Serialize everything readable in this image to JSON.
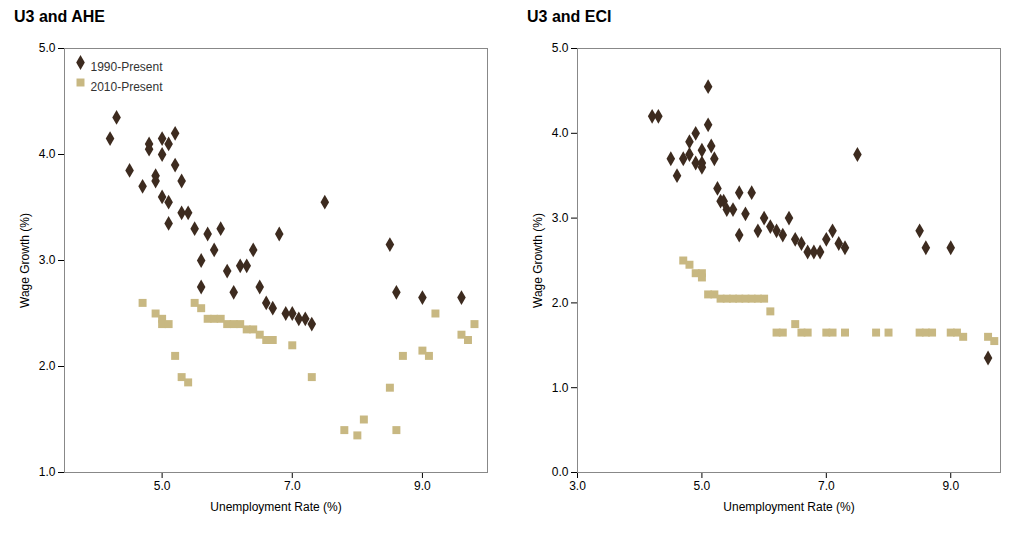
{
  "chart_data": [
    {
      "type": "scatter",
      "title": "U3 and AHE",
      "xlabel": "Unemployment Rate (%)",
      "ylabel": "Wage Growth (%)",
      "xlim": [
        3.5,
        10.0
      ],
      "ylim": [
        1.0,
        5.0
      ],
      "xticks": [
        5,
        7,
        9
      ],
      "yticks": [
        1,
        2,
        3,
        4,
        5
      ],
      "grid": false,
      "legend": "upper left",
      "series": [
        {
          "name": "1990-Present",
          "color": "#3d2b1f",
          "marker": "diamond",
          "x": [
            4.2,
            4.3,
            4.5,
            4.7,
            4.8,
            4.8,
            4.9,
            4.9,
            5.0,
            5.0,
            5.0,
            5.1,
            5.1,
            5.1,
            5.2,
            5.2,
            5.3,
            5.3,
            5.4,
            5.5,
            5.6,
            5.6,
            5.7,
            5.8,
            5.9,
            6.0,
            6.1,
            6.2,
            6.3,
            6.4,
            6.5,
            6.6,
            6.7,
            6.8,
            6.9,
            7.0,
            7.1,
            7.2,
            7.3,
            7.5,
            8.5,
            8.6,
            9.0,
            9.6
          ],
          "values": [
            4.15,
            4.35,
            3.85,
            3.7,
            4.1,
            4.05,
            3.8,
            3.75,
            4.15,
            4.0,
            3.6,
            4.1,
            3.55,
            3.35,
            4.2,
            3.9,
            3.75,
            3.45,
            3.45,
            3.3,
            3.0,
            2.75,
            3.25,
            3.1,
            3.3,
            2.9,
            2.7,
            2.95,
            2.95,
            3.1,
            2.75,
            2.6,
            2.55,
            3.25,
            2.5,
            2.5,
            2.45,
            2.45,
            2.4,
            3.55,
            3.15,
            2.7,
            2.65,
            2.65
          ]
        },
        {
          "name": "2010-Present",
          "color": "#c8b882",
          "marker": "square",
          "x": [
            4.7,
            4.9,
            5.0,
            5.0,
            5.1,
            5.2,
            5.3,
            5.4,
            5.5,
            5.6,
            5.7,
            5.8,
            5.9,
            6.0,
            6.1,
            6.2,
            6.3,
            6.4,
            6.5,
            6.6,
            6.7,
            7.0,
            7.3,
            7.8,
            8.0,
            8.1,
            8.5,
            8.6,
            8.7,
            9.0,
            9.1,
            9.2,
            9.6,
            9.7,
            9.8
          ],
          "values": [
            2.6,
            2.5,
            2.45,
            2.4,
            2.4,
            2.1,
            1.9,
            1.85,
            2.6,
            2.55,
            2.45,
            2.45,
            2.45,
            2.4,
            2.4,
            2.4,
            2.35,
            2.35,
            2.3,
            2.25,
            2.25,
            2.2,
            1.9,
            1.4,
            1.35,
            1.5,
            1.8,
            1.4,
            2.1,
            2.15,
            2.1,
            2.5,
            2.3,
            2.25,
            2.4
          ]
        }
      ]
    },
    {
      "type": "scatter",
      "title": "U3 and ECI",
      "xlabel": "Unemployment Rate (%)",
      "ylabel": "Wage Growth (%)",
      "xlim": [
        3.0,
        9.8
      ],
      "ylim": [
        0.0,
        5.0
      ],
      "xticks": [
        3,
        5,
        7,
        9
      ],
      "yticks": [
        0,
        1,
        2,
        3,
        4,
        5
      ],
      "grid": false,
      "series": [
        {
          "name": "1990-Present",
          "color": "#3d2b1f",
          "marker": "diamond",
          "x": [
            4.2,
            4.3,
            4.5,
            4.6,
            4.7,
            4.8,
            4.8,
            4.9,
            4.9,
            5.0,
            5.0,
            5.0,
            5.1,
            5.1,
            5.15,
            5.2,
            5.25,
            5.3,
            5.35,
            5.4,
            5.5,
            5.6,
            5.6,
            5.7,
            5.8,
            5.9,
            6.0,
            6.1,
            6.2,
            6.3,
            6.4,
            6.5,
            6.6,
            6.7,
            6.8,
            6.9,
            7.0,
            7.1,
            7.2,
            7.3,
            7.5,
            8.5,
            8.6,
            9.0,
            9.6
          ],
          "values": [
            4.2,
            4.2,
            3.7,
            3.5,
            3.7,
            3.9,
            3.75,
            3.65,
            4.0,
            3.8,
            3.65,
            3.6,
            4.55,
            4.1,
            3.85,
            3.7,
            3.35,
            3.2,
            3.2,
            3.1,
            3.1,
            2.8,
            3.3,
            3.05,
            3.3,
            2.85,
            3.0,
            2.9,
            2.85,
            2.8,
            3.0,
            2.75,
            2.7,
            2.6,
            2.6,
            2.6,
            2.75,
            2.85,
            2.7,
            2.65,
            3.75,
            2.85,
            2.65,
            2.65,
            1.35
          ]
        },
        {
          "name": "2010-Present",
          "color": "#c8b882",
          "marker": "square",
          "x": [
            4.7,
            4.8,
            4.9,
            5.0,
            5.0,
            5.1,
            5.2,
            5.3,
            5.4,
            5.5,
            5.6,
            5.7,
            5.8,
            5.9,
            6.0,
            6.1,
            6.2,
            6.3,
            6.5,
            6.6,
            6.7,
            7.0,
            7.1,
            7.3,
            7.8,
            8.0,
            8.5,
            8.6,
            8.7,
            9.0,
            9.1,
            9.2,
            9.6,
            9.7
          ],
          "values": [
            2.5,
            2.45,
            2.35,
            2.35,
            2.3,
            2.1,
            2.1,
            2.05,
            2.05,
            2.05,
            2.05,
            2.05,
            2.05,
            2.05,
            2.05,
            1.9,
            1.65,
            1.65,
            1.75,
            1.65,
            1.65,
            1.65,
            1.65,
            1.65,
            1.65,
            1.65,
            1.65,
            1.65,
            1.65,
            1.65,
            1.65,
            1.6,
            1.6,
            1.55
          ]
        }
      ]
    }
  ]
}
